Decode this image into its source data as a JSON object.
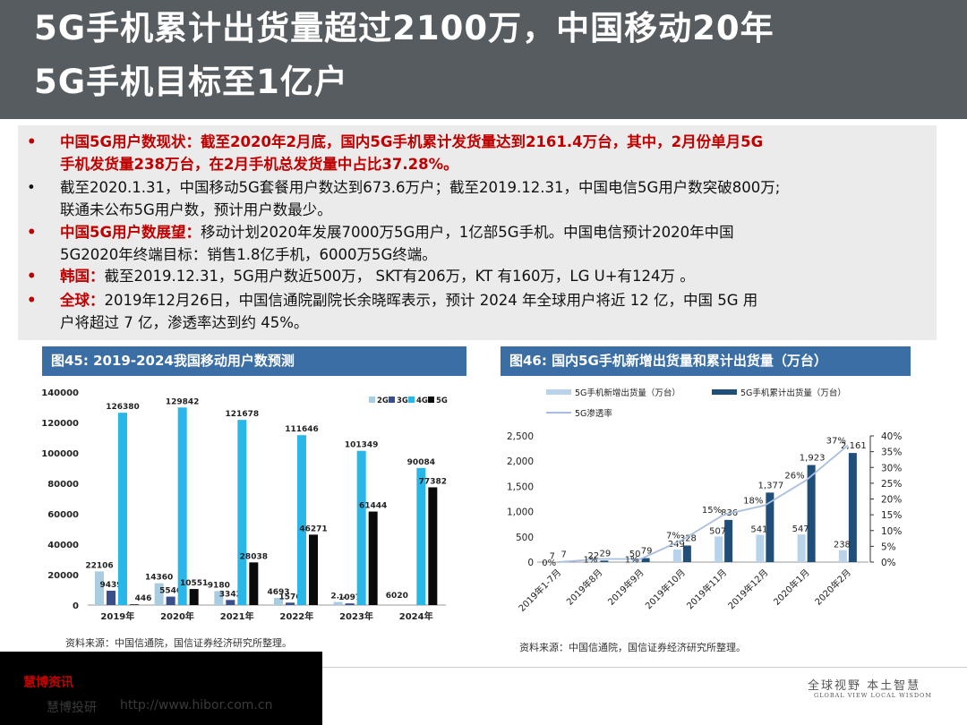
{
  "title": {
    "line1": "5G手机累计出货量超过2100万，中国移动20年",
    "line2": "5G手机目标至1亿户"
  },
  "bullets": [
    {
      "dot": "•",
      "label": "中国5G用户数现状：",
      "text": "截至2020年2月底，国内5G手机累计发货量达到2161.4万台，其中，2月份单月5G",
      "cont": "手机发货量238万台，在2月手机总发货量中占比37.28%。",
      "red_all": true
    },
    {
      "dot": "•",
      "label": "",
      "text": "截至2020.1.31，中国移动5G套餐用户数达到673.6万户；截至2019.12.31，中国电信5G用户数突破800万;",
      "cont": "联通未公布5G用户数，预计用户数最少。",
      "red_all": false
    },
    {
      "dot": "•",
      "label": "中国5G用户数展望：",
      "text": "移动计划2020年发展7000万5G用户，1亿部5G手机。中国电信预计2020年中国",
      "cont": "5G2020年终端目标：销售1.8亿手机，6000万5G终端。",
      "red_all": false
    },
    {
      "dot": "•",
      "label": "韩国：",
      "text": "截至2019.12.31，5G用户数近500万， SKT有206万，KT 有160万，LG U+有124万 。",
      "cont": "",
      "red_all": false
    },
    {
      "dot": "•",
      "label": "全球：",
      "text": "2019年12月26日，中国信通院副院长余晓晖表示，预计 2024 年全球用户将近 12 亿，中国 5G 用",
      "cont": "户将超过 7 亿，渗透率达到约 45%。",
      "red_all": false
    }
  ],
  "fig45": {
    "title": "图45:  2019-2024我国移动用户数预测",
    "source": "资料来源：中国信通院，国信证券经济研究所整理。"
  },
  "fig46": {
    "title": "图46:  国内5G手机新增出货量和累计出货量（万台）",
    "source": "资料来源：中国信通院，国信证券经济研究所整理。"
  },
  "footer": {
    "hibor_name": "慧博资讯",
    "hibor_slogan": "慧博投研",
    "hibor_url": "http://www.hibor.com.cn",
    "brand_cn": "全球视野  本土智慧",
    "brand_en": "GLOBAL VIEW   LOCAL WISDOM"
  },
  "colors": {
    "header": "#565c60",
    "fig_title": "#3b6ea5",
    "red": "#c00000",
    "series_2g": "#a9cde0",
    "series_3g": "#3a4f8a",
    "series_4g": "#29b6e8",
    "series_5g": "#0a0a0a",
    "new_ship": "#b9d3ea",
    "cum_ship": "#1f4e79",
    "penetration": "#a9bfe0"
  },
  "chart_data": [
    {
      "type": "bar",
      "title": "",
      "categories": [
        "2019年",
        "2020年",
        "2021年",
        "2022年",
        "2023年",
        "2024年"
      ],
      "ylim": [
        0,
        140000
      ],
      "yticks": [
        0,
        20000,
        40000,
        60000,
        80000,
        100000,
        120000,
        140000
      ],
      "legend": "top-right",
      "series": [
        {
          "name": "2G",
          "values": [
            22106,
            14360,
            9180,
            4693,
            2000,
            0
          ],
          "labels": [
            "22106",
            "14360",
            "9180",
            "4693",
            "2...",
            ""
          ]
        },
        {
          "name": "3G",
          "values": [
            9439,
            5546,
            3342,
            1576,
            1097,
            0
          ],
          "labels": [
            "9439",
            "5546",
            "3342",
            "1576",
            "1097",
            ""
          ]
        },
        {
          "name": "4G",
          "values": [
            126380,
            129842,
            121678,
            111646,
            101349,
            90084
          ],
          "labels": [
            "126380",
            "129842",
            "121678",
            "111646",
            "101349",
            "90084"
          ]
        },
        {
          "name": "5G",
          "values": [
            446,
            10551,
            28038,
            46271,
            61444,
            77382
          ],
          "labels": [
            "446",
            "10551",
            "28038",
            "46271",
            "61444",
            "77382"
          ]
        }
      ],
      "extra_labels": [
        {
          "text": "6020",
          "category": "2024年"
        }
      ]
    },
    {
      "type": "bar",
      "title": "",
      "categories": [
        "2019年1-7月",
        "2019年8月",
        "2019年9月",
        "2019年10月",
        "2019年11月",
        "2019年12月",
        "2020年1月",
        "2020年2月"
      ],
      "ylim": [
        0,
        2500
      ],
      "yticks": [
        0,
        500,
        1000,
        1500,
        2000,
        2500
      ],
      "y2lim": [
        0,
        40
      ],
      "y2ticks": [
        "0%",
        "5%",
        "10%",
        "15%",
        "20%",
        "25%",
        "30%",
        "35%",
        "40%"
      ],
      "series": [
        {
          "name": "5G手机新增出货量（万台）",
          "values": [
            7,
            22,
            50,
            249,
            507,
            541,
            547,
            238
          ]
        },
        {
          "name": "5G手机累计出货量（万台）",
          "values": [
            7,
            29,
            79,
            328,
            836,
            1377,
            1923,
            2161
          ]
        },
        {
          "name": "5G渗透率",
          "values": [
            0,
            1,
            1,
            7,
            15,
            18,
            26,
            37
          ],
          "labels": [
            "0%",
            "1%",
            "1%",
            "7%",
            "15%",
            "18%",
            "26%",
            "37%"
          ]
        }
      ]
    }
  ]
}
